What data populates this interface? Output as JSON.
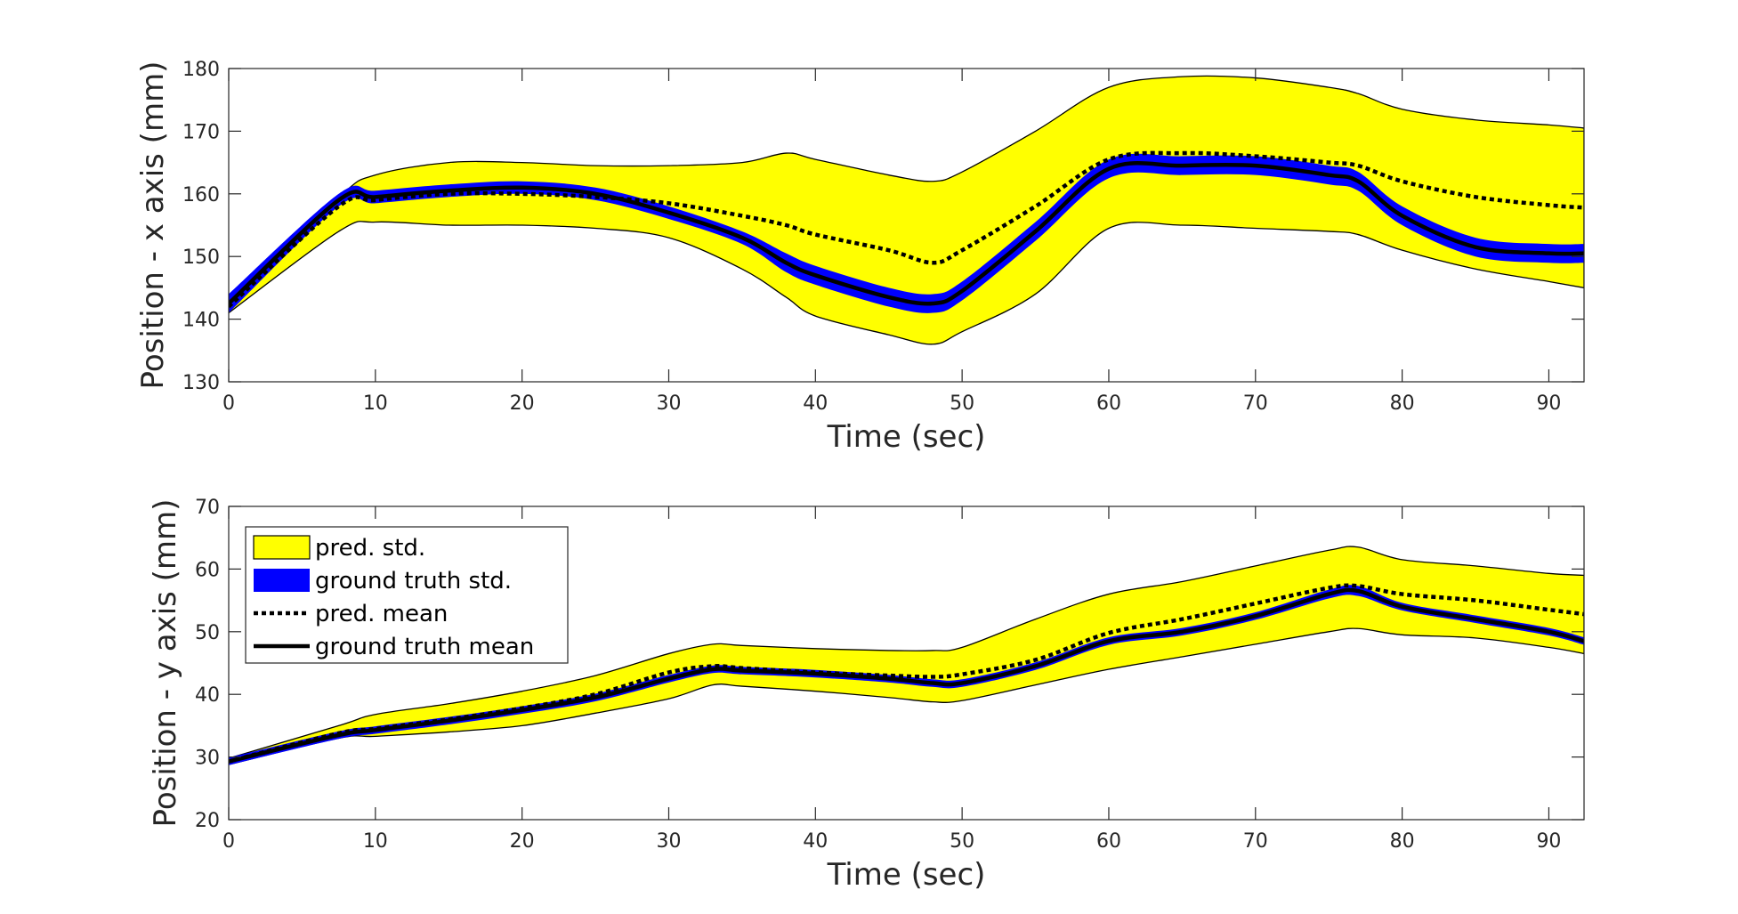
{
  "chart_data": [
    {
      "type": "area",
      "xlabel": "Time (sec)",
      "ylabel": "Position - x axis (mm)",
      "xlim": [
        0,
        92.4
      ],
      "ylim": [
        130,
        180
      ],
      "xticks": [
        0,
        10,
        20,
        30,
        40,
        50,
        60,
        70,
        80,
        90
      ],
      "yticks": [
        130,
        140,
        150,
        160,
        170,
        180
      ],
      "colors": {
        "pred_std": "#ffff00",
        "gt_std": "#0000ff",
        "pred_mean": "#000000",
        "gt_mean": "#000000"
      },
      "x": [
        0,
        7.5,
        10,
        15,
        20,
        25,
        30,
        35,
        38,
        40,
        45,
        48,
        50,
        55,
        60,
        65,
        70,
        75,
        77,
        80,
        85,
        90,
        92.4
      ],
      "series": [
        {
          "name": "pred. mean",
          "values": [
            142.0,
            158.0,
            159.0,
            160.0,
            160.0,
            159.5,
            158.5,
            156.5,
            155.0,
            153.5,
            151.0,
            149.0,
            151.0,
            158.0,
            165.5,
            166.5,
            166.0,
            165.0,
            164.5,
            162.0,
            159.5,
            158.2,
            157.8
          ]
        },
        {
          "name": "pred. std upper",
          "values": [
            143.0,
            159.5,
            163.0,
            165.0,
            165.0,
            164.5,
            164.5,
            165.0,
            166.5,
            165.5,
            163.0,
            162.0,
            163.5,
            170.0,
            177.0,
            178.7,
            178.5,
            177.0,
            176.0,
            173.5,
            171.8,
            171.0,
            170.5
          ]
        },
        {
          "name": "pred. std lower",
          "values": [
            141.0,
            154.0,
            155.5,
            155.0,
            155.0,
            154.5,
            153.0,
            148.0,
            143.5,
            140.5,
            137.5,
            136.0,
            138.0,
            144.0,
            154.5,
            155.0,
            154.5,
            154.0,
            153.5,
            151.0,
            148.0,
            146.0,
            145.0
          ]
        },
        {
          "name": "ground truth mean",
          "values": [
            142.5,
            159.0,
            159.5,
            160.5,
            161.0,
            160.0,
            157.0,
            153.0,
            149.0,
            147.0,
            143.5,
            142.5,
            144.5,
            154.0,
            164.0,
            164.5,
            164.5,
            163.0,
            162.0,
            156.5,
            151.5,
            150.5,
            150.5
          ]
        },
        {
          "name": "ground truth std upper",
          "values": [
            144.0,
            160.0,
            160.5,
            161.5,
            162.0,
            161.0,
            158.0,
            154.0,
            150.5,
            148.5,
            145.0,
            144.0,
            146.0,
            155.5,
            165.5,
            166.0,
            166.0,
            164.5,
            163.5,
            158.0,
            153.0,
            152.0,
            152.0
          ]
        },
        {
          "name": "ground truth std lower",
          "values": [
            141.0,
            158.0,
            158.5,
            159.5,
            160.0,
            159.0,
            156.0,
            152.0,
            147.5,
            145.5,
            142.0,
            141.0,
            143.0,
            152.5,
            162.5,
            163.0,
            163.0,
            161.5,
            160.5,
            155.0,
            150.0,
            149.0,
            149.0
          ]
        }
      ]
    },
    {
      "type": "area",
      "xlabel": "Time (sec)",
      "ylabel": "Position - y axis (mm)",
      "xlim": [
        0,
        92.4
      ],
      "ylim": [
        20,
        70
      ],
      "xticks": [
        0,
        10,
        20,
        30,
        40,
        50,
        60,
        70,
        80,
        90
      ],
      "yticks": [
        20,
        30,
        40,
        50,
        60,
        70
      ],
      "legend": {
        "position": "top-left",
        "entries": [
          "pred. std.",
          "ground truth std.",
          "pred. mean",
          "ground truth mean"
        ]
      },
      "x": [
        0,
        7.5,
        10,
        15,
        20,
        25,
        30,
        33,
        35,
        40,
        45,
        48,
        50,
        55,
        60,
        65,
        70,
        75,
        77,
        80,
        85,
        90,
        92.4
      ],
      "series": [
        {
          "name": "pred. mean",
          "values": [
            29.3,
            33.8,
            34.5,
            36.0,
            37.8,
            40.0,
            43.5,
            44.5,
            44.2,
            43.5,
            43.0,
            42.8,
            43.2,
            45.5,
            49.8,
            52.0,
            54.5,
            57.0,
            57.3,
            56.0,
            55.0,
            53.5,
            52.8
          ]
        },
        {
          "name": "pred. std upper",
          "values": [
            29.8,
            35.0,
            36.8,
            38.5,
            40.5,
            43.0,
            46.5,
            48.0,
            47.8,
            47.3,
            47.0,
            47.0,
            47.5,
            52.0,
            56.0,
            58.0,
            60.5,
            63.0,
            63.5,
            61.5,
            60.5,
            59.3,
            59.0
          ]
        },
        {
          "name": "pred. std lower",
          "values": [
            28.8,
            33.0,
            33.3,
            34.0,
            35.0,
            37.0,
            39.3,
            41.5,
            41.3,
            40.5,
            39.5,
            38.8,
            39.0,
            41.5,
            44.0,
            46.0,
            48.0,
            50.0,
            50.5,
            49.5,
            49.0,
            47.5,
            46.5
          ]
        },
        {
          "name": "ground truth mean",
          "values": [
            29.3,
            33.5,
            34.3,
            35.8,
            37.5,
            39.5,
            42.5,
            44.0,
            43.8,
            43.3,
            42.5,
            41.8,
            41.8,
            44.5,
            48.5,
            50.0,
            52.5,
            56.0,
            56.5,
            54.0,
            52.0,
            50.0,
            48.5
          ]
        },
        {
          "name": "ground truth std upper",
          "values": [
            29.9,
            34.1,
            34.9,
            36.4,
            38.1,
            40.1,
            43.1,
            44.6,
            44.4,
            43.9,
            43.1,
            42.4,
            42.4,
            45.1,
            49.1,
            50.6,
            53.1,
            56.7,
            57.3,
            54.6,
            52.6,
            50.6,
            49.1
          ]
        },
        {
          "name": "ground truth std lower",
          "values": [
            28.7,
            32.9,
            33.7,
            35.2,
            36.9,
            38.9,
            41.9,
            43.4,
            43.2,
            42.7,
            41.9,
            41.2,
            41.2,
            43.9,
            47.9,
            49.4,
            51.9,
            55.3,
            55.7,
            53.4,
            51.4,
            49.4,
            47.9
          ]
        }
      ]
    }
  ]
}
